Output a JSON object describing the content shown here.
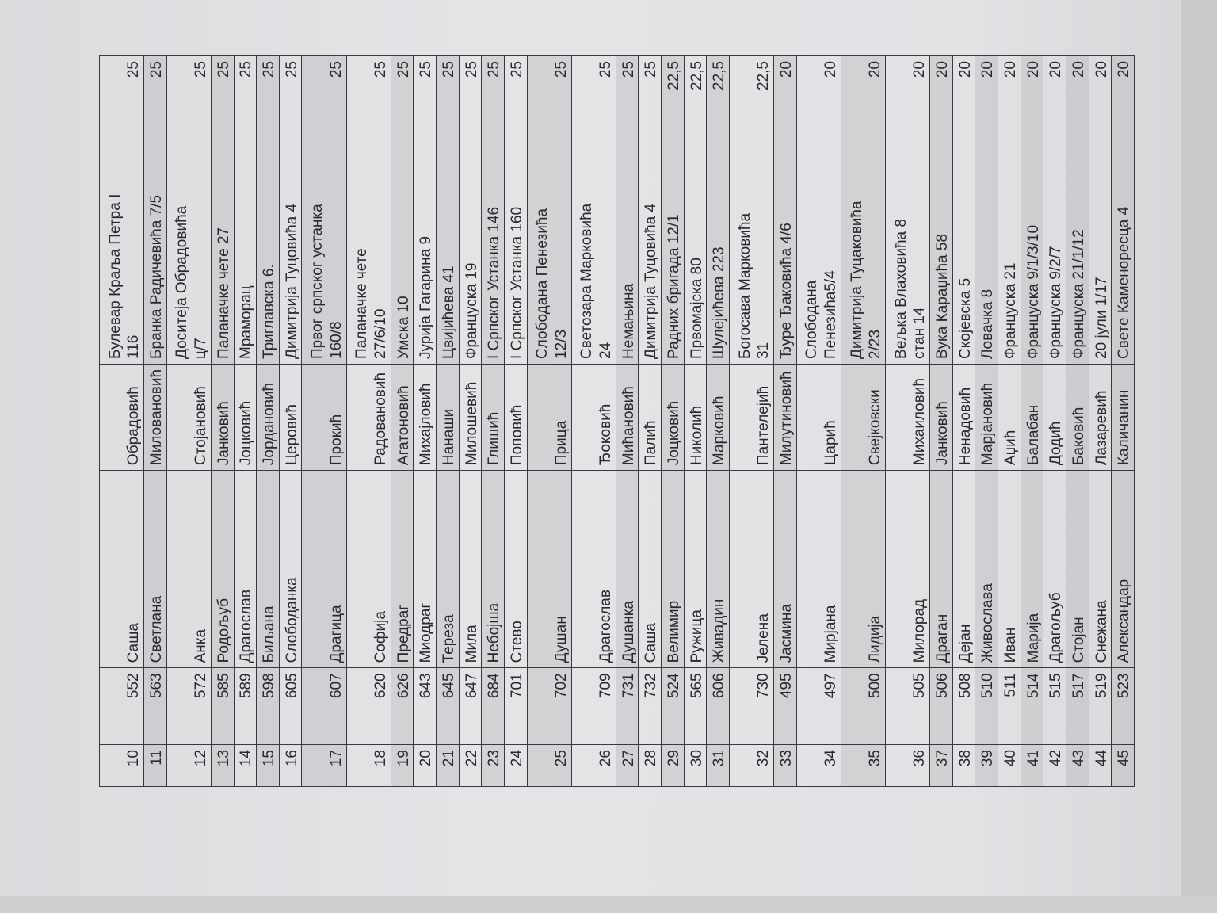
{
  "table": {
    "rows": [
      {
        "no": "10",
        "id": "552",
        "first": "Саша",
        "last": "Обрадовић",
        "address": "Булевар Краља Петра I\n116",
        "amount": "25"
      },
      {
        "no": "11",
        "id": "563",
        "first": "Светлана",
        "last": "Миловановић",
        "address": "Бранка Радичевића 7/5",
        "amount": "25"
      },
      {
        "no": "12",
        "id": "572",
        "first": "Анка",
        "last": "Стојановић",
        "address": "Доситеја Обрадовића\nц/7",
        "amount": "25"
      },
      {
        "no": "13",
        "id": "585",
        "first": "Родољуб",
        "last": "Јанковић",
        "address": "Паланачке чете 27",
        "amount": "25"
      },
      {
        "no": "14",
        "id": "589",
        "first": "Драгослав",
        "last": "Јоцковић",
        "address": "Мраморац",
        "amount": "25"
      },
      {
        "no": "15",
        "id": "598",
        "first": "Биљана",
        "last": "Јордановић",
        "address": "Триглавска 6.",
        "amount": "25"
      },
      {
        "no": "16",
        "id": "605",
        "first": "Слободанка",
        "last": "Церовић",
        "address": "Димитрија Туцовића 4",
        "amount": "25"
      },
      {
        "no": "17",
        "id": "607",
        "first": "Драгица",
        "last": "Прокић",
        "address": "Првог српског устанка\n160/8",
        "amount": "25"
      },
      {
        "no": "18",
        "id": "620",
        "first": "Софија",
        "last": "Радовановић",
        "address": "Паланачке чете\n27/6/10",
        "amount": "25"
      },
      {
        "no": "19",
        "id": "626",
        "first": "Предраг",
        "last": "Агатоновић",
        "address": "Умска 10",
        "amount": "25"
      },
      {
        "no": "20",
        "id": "643",
        "first": "Миодраг",
        "last": "Михајловић",
        "address": "Јурија Гагарина 9",
        "amount": "25"
      },
      {
        "no": "21",
        "id": "645",
        "first": "Тереза",
        "last": "Нанаши",
        "address": "Цвијићева 41",
        "amount": "25"
      },
      {
        "no": "22",
        "id": "647",
        "first": "Мила",
        "last": "Милошевић",
        "address": "Француска 19",
        "amount": "25"
      },
      {
        "no": "23",
        "id": "684",
        "first": "Небојша",
        "last": "Глишић",
        "address": "I Српског Устанка 146",
        "amount": "25"
      },
      {
        "no": "24",
        "id": "701",
        "first": "Стево",
        "last": "Поповић",
        "address": "I Српског Устанка 160",
        "amount": "25"
      },
      {
        "no": "25",
        "id": "702",
        "first": "Душан",
        "last": "Прица",
        "address": "Слободана Пенезића\n12/3",
        "amount": "25"
      },
      {
        "no": "26",
        "id": "709",
        "first": "Драгослав",
        "last": "Ђоковић",
        "address": "Светозара Марковића\n24",
        "amount": "25"
      },
      {
        "no": "27",
        "id": "731",
        "first": "Душанка",
        "last": "Мићановић",
        "address": "Немањина",
        "amount": "25"
      },
      {
        "no": "28",
        "id": "732",
        "first": "Саша",
        "last": "Палић",
        "address": "Димитрија Туцовића 4",
        "amount": "25"
      },
      {
        "no": "29",
        "id": "524",
        "first": "Велимир",
        "last": "Јоцковић",
        "address": "Радних бригада 12/1",
        "amount": "22,5"
      },
      {
        "no": "30",
        "id": "565",
        "first": "Ружица",
        "last": "Николић",
        "address": "Првомајска 80",
        "amount": "22,5"
      },
      {
        "no": "31",
        "id": "606",
        "first": "Живадин",
        "last": "Марковић",
        "address": "Шулејићева 223",
        "amount": "22,5"
      },
      {
        "no": "32",
        "id": "730",
        "first": "Јелена",
        "last": "Пантелејић",
        "address": "Богосава Марковића\n31",
        "amount": "22,5"
      },
      {
        "no": "33",
        "id": "495",
        "first": "Јасмина",
        "last": "Милутиновић",
        "address": "Ђуре Ђаковића 4/6",
        "amount": "20"
      },
      {
        "no": "34",
        "id": "497",
        "first": "Мирјана",
        "last": "Царић",
        "address": "Слободана\nПенезића5/4",
        "amount": "20"
      },
      {
        "no": "35",
        "id": "500",
        "first": "Лидија",
        "last": "Свејковски",
        "address": "Димитрија Туцаковића\n2/23",
        "amount": "20"
      },
      {
        "no": "36",
        "id": "505",
        "first": "Милорад",
        "last": "Михаиловић",
        "address": "Вељка Влаховића 8\nстан 14",
        "amount": "20"
      },
      {
        "no": "37",
        "id": "506",
        "first": "Драган",
        "last": "Јанковић",
        "address": "Вука Караџића 58",
        "amount": "20"
      },
      {
        "no": "38",
        "id": "508",
        "first": "Дејан",
        "last": "Ненадовић",
        "address": "Скојевска 5",
        "amount": "20"
      },
      {
        "no": "39",
        "id": "510",
        "first": "Живослава",
        "last": "Марјановић",
        "address": "Ловачка 8",
        "amount": "20"
      },
      {
        "no": "40",
        "id": "511",
        "first": "Иван",
        "last": "Аџић",
        "address": "Француска 21",
        "amount": "20"
      },
      {
        "no": "41",
        "id": "514",
        "first": "Марија",
        "last": "Балабан",
        "address": "Француска 9/1/3/10",
        "amount": "20"
      },
      {
        "no": "42",
        "id": "515",
        "first": "Драгољуб",
        "last": "Додић",
        "address": "Француска 9/2/7",
        "amount": "20"
      },
      {
        "no": "43",
        "id": "517",
        "first": "Стојан",
        "last": "Баковић",
        "address": "Француска 21/1/12",
        "amount": "20"
      },
      {
        "no": "44",
        "id": "519",
        "first": "Снежана",
        "last": "Лазаревић",
        "address": "20 јули 1/17",
        "amount": "20"
      },
      {
        "no": "45",
        "id": "523",
        "first": "Александар",
        "last": "Каличанин",
        "address": "Свете Каменоресца 4",
        "amount": "20"
      }
    ]
  }
}
